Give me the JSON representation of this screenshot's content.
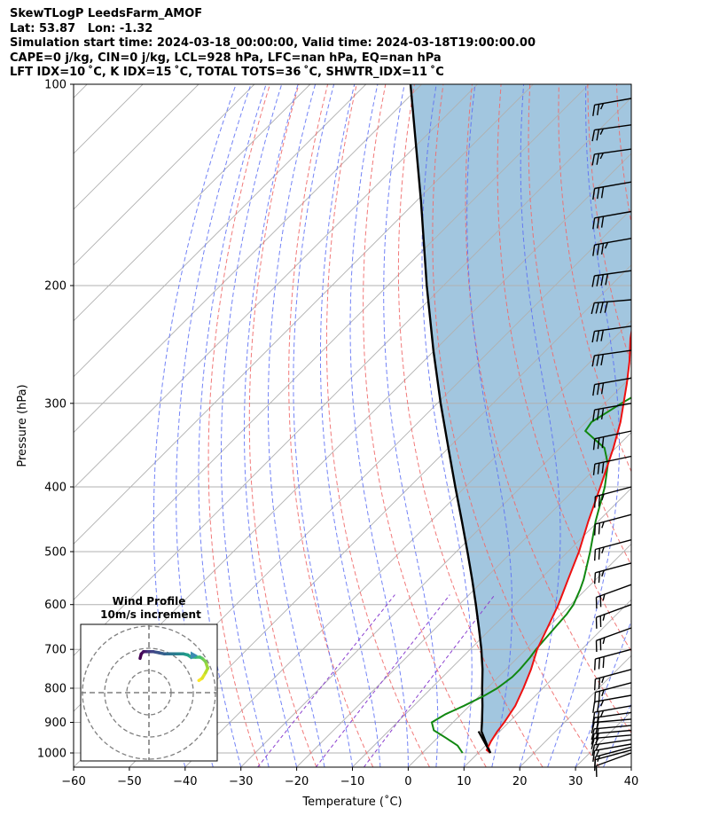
{
  "header": {
    "line1": "SkewTLogP LeedsFarm_AMOF",
    "line2": "Lat: 53.87   Lon: -1.32",
    "line3": "Simulation start time: 2024-03-18_00:00:00, Valid time: 2024-03-18T19:00:00.00",
    "line4": "CAPE=0 j/kg, CIN=0 j/kg, LCL=928 hPa, LFC=nan hPa, EQ=nan hPa",
    "line5": "LFT IDX=10 ˚C, K IDX=15 ˚C, TOTAL TOTS=36 ˚C, SHWTR_IDX=11 ˚C"
  },
  "chart_data": [
    {
      "type": "line",
      "subtype": "skew-t log-p",
      "xlabel": "Temperature (˚C)",
      "ylabel": "Pressure (hPa)",
      "xlim": [
        -60,
        40
      ],
      "ylim": [
        1050,
        100
      ],
      "yscale": "log",
      "x_ticks": [
        -60,
        -50,
        -40,
        -30,
        -20,
        -10,
        0,
        10,
        20,
        30,
        40
      ],
      "y_ticks": [
        100,
        200,
        300,
        400,
        500,
        600,
        700,
        800,
        900,
        1000
      ],
      "grid": true,
      "colors": {
        "temperature": "#ee1111",
        "dewpoint": "#118811",
        "parcel": "#000000",
        "shading": "#a2c6df",
        "isotherm": "#b0b0b0",
        "dry_adiabat": "#f06a6a",
        "moist_adiabat": "#5a6df5",
        "mixing_ratio": "#8a3fcf"
      },
      "series": [
        {
          "role": "temperature",
          "p": [
            1000,
            990,
            960,
            930,
            900,
            850,
            800,
            750,
            700,
            650,
            600,
            550,
            500,
            450,
            400,
            350,
            320,
            300,
            280,
            260,
            240,
            225,
            210,
            200,
            190,
            180,
            170,
            160,
            150,
            140,
            130,
            120,
            110,
            105,
            100
          ],
          "t": [
            12.2,
            11.0,
            10.2,
            9.6,
            9.2,
            8.2,
            6.5,
            4.5,
            2.0,
            0.0,
            -2.2,
            -5.0,
            -8.0,
            -11.8,
            -15.8,
            -20.4,
            -23.8,
            -26.6,
            -29.6,
            -33.0,
            -37.0,
            -39.8,
            -40.9,
            -40.3,
            -41.2,
            -37.5,
            -35.0,
            -34.0,
            -32.5,
            -31.5,
            -32.0,
            -33.0,
            -34.3,
            -35.0,
            -36.0
          ]
        },
        {
          "role": "dewpoint",
          "p": [
            1000,
            975,
            950,
            925,
            900,
            875,
            850,
            820,
            800,
            770,
            750,
            720,
            700,
            670,
            650,
            620,
            600,
            570,
            550,
            500,
            450,
            400,
            370,
            350,
            330,
            320,
            300,
            285,
            270,
            260,
            245,
            230,
            220,
            200,
            180,
            165,
            150,
            140,
            130,
            120,
            110,
            100
          ],
          "t": [
            7.2,
            5.0,
            1.6,
            -2.0,
            -3.8,
            -2.8,
            -1.0,
            0.9,
            1.8,
            2.5,
            2.5,
            2.2,
            1.8,
            1.5,
            1.3,
            1.0,
            0.5,
            -1.0,
            -2.2,
            -6.0,
            -10.5,
            -15.0,
            -18.5,
            -22.0,
            -28.5,
            -29.0,
            -27.0,
            -25.0,
            -29.5,
            -32.0,
            -34.2,
            -35.5,
            -36.3,
            -38.0,
            -39.0,
            -41.0,
            -45.5,
            -48.8,
            -48.8,
            -46.0,
            -44.0,
            -43.0
          ]
        },
        {
          "role": "parcel",
          "p": [
            1000,
            975,
            950,
            928,
            900,
            850,
            800,
            750,
            700,
            650,
            600,
            550,
            500,
            450,
            400,
            350,
            300,
            250,
            200,
            150,
            100
          ],
          "t": [
            12.2,
            10.3,
            8.4,
            6.7,
            5.2,
            2.3,
            -0.9,
            -4.2,
            -8.0,
            -12.3,
            -17.0,
            -22.2,
            -28.0,
            -34.5,
            -41.8,
            -50.0,
            -59.4,
            -70.2,
            -83.0,
            -99.0,
            -122.0
          ]
        }
      ],
      "wind_barbs": {
        "pressures_hpa": [
          1000,
          990,
          980,
          970,
          955,
          940,
          925,
          910,
          890,
          870,
          850,
          820,
          785,
          750,
          700,
          650,
          600,
          560,
          520,
          480,
          440,
          400,
          360,
          330,
          300,
          275,
          250,
          230,
          210,
          190,
          170,
          155,
          140,
          125,
          115,
          105
        ],
        "direction_deg": [
          250,
          255,
          255,
          260,
          262,
          265,
          265,
          265,
          265,
          262,
          260,
          260,
          255,
          255,
          255,
          250,
          250,
          250,
          255,
          255,
          255,
          255,
          258,
          258,
          260,
          260,
          262,
          262,
          265,
          262,
          260,
          260,
          260,
          262,
          262,
          260
        ],
        "speed_kt": [
          10,
          10,
          15,
          15,
          15,
          15,
          20,
          20,
          20,
          20,
          25,
          25,
          25,
          25,
          30,
          25,
          25,
          25,
          25,
          25,
          25,
          25,
          30,
          30,
          30,
          30,
          30,
          30,
          40,
          40,
          35,
          30,
          30,
          25,
          25,
          25
        ]
      }
    },
    {
      "type": "line",
      "subtype": "hodograph",
      "title": "Wind Profile",
      "subtitle": "10m/s increment",
      "ring_increment_ms": 10,
      "rings": 3,
      "colormap": "viridis",
      "arrow_color": "#3b8bb3",
      "u": [
        22.5,
        24,
        25.5,
        26.5,
        25.5,
        24,
        23,
        21,
        19,
        17.5,
        15.5,
        13.5,
        11.5,
        9,
        7,
        4.5,
        2,
        0,
        -1.5,
        -2.5,
        -3.5,
        -4
      ],
      "v": [
        5.5,
        6.5,
        9,
        11,
        14,
        15.5,
        16,
        16,
        16,
        17,
        17.5,
        17.5,
        17.5,
        17.5,
        17.5,
        18,
        18.5,
        18.5,
        18.5,
        18.5,
        17.5,
        15.5
      ]
    }
  ]
}
